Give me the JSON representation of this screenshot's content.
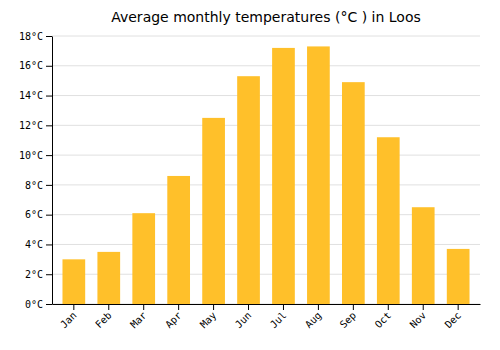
{
  "chart_data": {
    "type": "bar",
    "title": "Average monthly temperatures (°C ) in Loos",
    "categories": [
      "Jan",
      "Feb",
      "Mar",
      "Apr",
      "May",
      "Jun",
      "Jul",
      "Aug",
      "Sep",
      "Oct",
      "Nov",
      "Dec"
    ],
    "values": [
      3.0,
      3.5,
      6.1,
      8.6,
      12.5,
      15.3,
      17.2,
      17.3,
      14.9,
      11.2,
      6.5,
      3.7
    ],
    "color": "#FFC02A",
    "ylim": [
      0,
      18
    ],
    "yticks": [
      {
        "value": 0,
        "label": "0°C"
      },
      {
        "value": 2,
        "label": "2°C"
      },
      {
        "value": 4,
        "label": "4°C"
      },
      {
        "value": 6,
        "label": "6°C"
      },
      {
        "value": 8,
        "label": "8°C"
      },
      {
        "value": 10,
        "label": "10°C"
      },
      {
        "value": 12,
        "label": "12°C"
      },
      {
        "value": 14,
        "label": "14°C"
      },
      {
        "value": 16,
        "label": "16°C"
      },
      {
        "value": 18,
        "label": "18°C"
      }
    ],
    "grid": true
  }
}
